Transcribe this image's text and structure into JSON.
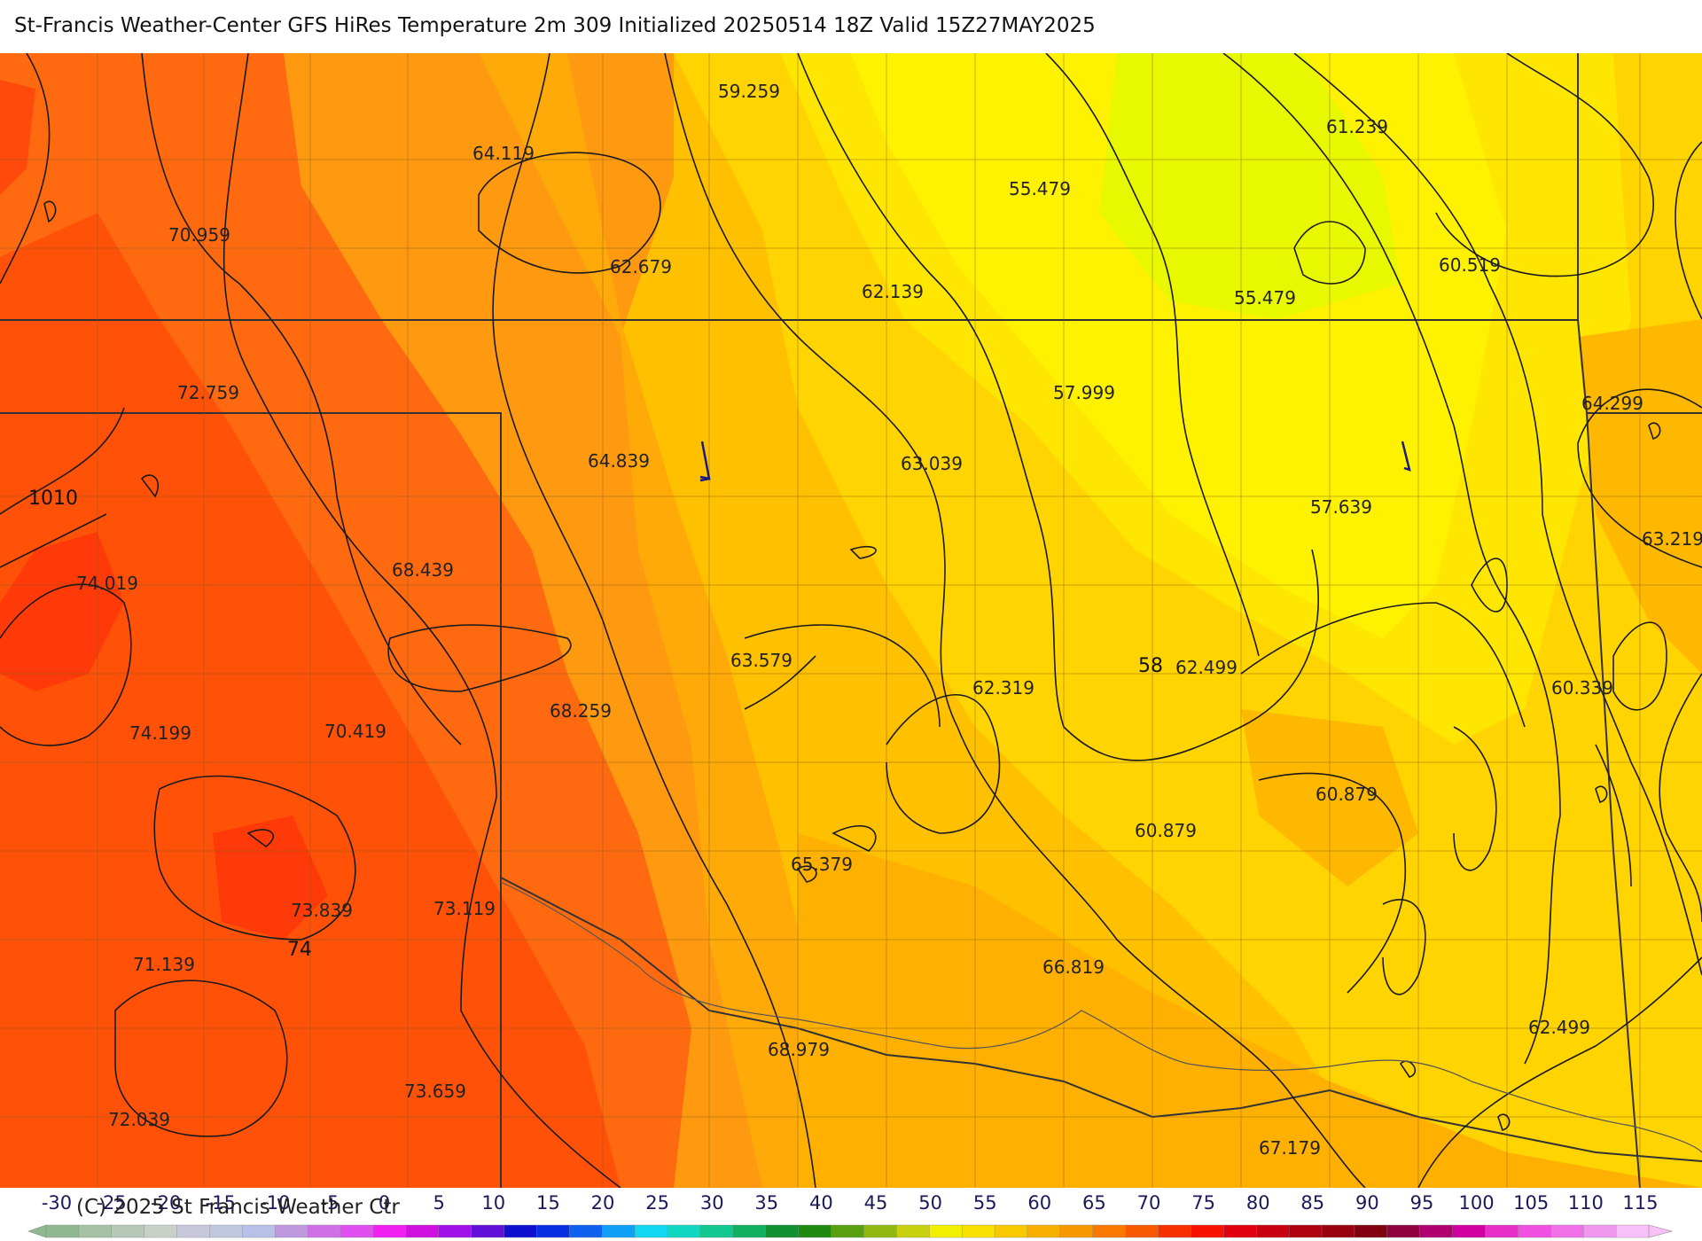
{
  "title": "St-Francis Weather-Center GFS HiRes Temperature 2m  309 Initialized 20250514 18Z Valid 15Z27MAY2025",
  "copyright": "(C) 2025 St Francis Weather Ctr",
  "temperature_labels": [
    {
      "text": "59.259"
    },
    {
      "text": "64.119"
    },
    {
      "text": "55.479"
    },
    {
      "text": "61.239"
    },
    {
      "text": "70.959"
    },
    {
      "text": "62.679"
    },
    {
      "text": "62.139"
    },
    {
      "text": "55.479"
    },
    {
      "text": "60.519"
    },
    {
      "text": "72.759"
    },
    {
      "text": "57.999"
    },
    {
      "text": "64.299"
    },
    {
      "text": "64.839"
    },
    {
      "text": "63.039"
    },
    {
      "text": "57.639"
    },
    {
      "text": "63.219"
    },
    {
      "text": "74.019"
    },
    {
      "text": "68.439"
    },
    {
      "text": "63.579"
    },
    {
      "text": "62.319"
    },
    {
      "text": "62.499"
    },
    {
      "text": "60.339"
    },
    {
      "text": "68.259"
    },
    {
      "text": "74.199"
    },
    {
      "text": "70.419"
    },
    {
      "text": "60.879"
    },
    {
      "text": "60.879"
    },
    {
      "text": "65.379"
    },
    {
      "text": "73.839"
    },
    {
      "text": "73.119"
    },
    {
      "text": "71.139"
    },
    {
      "text": "66.819"
    },
    {
      "text": "62.499"
    },
    {
      "text": "68.979"
    },
    {
      "text": "73.659"
    },
    {
      "text": "72.039"
    },
    {
      "text": "67.179"
    }
  ],
  "isobar_labels": [
    {
      "text": "1010"
    },
    {
      "text": "58"
    },
    {
      "text": "74"
    }
  ],
  "legend": {
    "ticks": [
      "-30",
      "-25",
      "-20",
      "-15",
      "-10",
      "-5",
      "0",
      "5",
      "10",
      "15",
      "20",
      "25",
      "30",
      "35",
      "40",
      "45",
      "50",
      "55",
      "60",
      "65",
      "70",
      "75",
      "80",
      "85",
      "90",
      "95",
      "100",
      "105",
      "110",
      "115"
    ],
    "colors": [
      "#8fb88f",
      "#a5c2a5",
      "#b8c8b8",
      "#c8d0c8",
      "#c8c8dc",
      "#c0c8e0",
      "#b8c0e8",
      "#c098e0",
      "#d070e8",
      "#e050f0",
      "#f020f0",
      "#d010e0",
      "#a010e8",
      "#6010d8",
      "#1010d0",
      "#0830e0",
      "#1060f0",
      "#10a0f8",
      "#10d8f0",
      "#10d8c0",
      "#10c890",
      "#10b060",
      "#109030",
      "#208a10",
      "#58a010",
      "#90b810",
      "#c8d010",
      "#f0f000",
      "#f8e000",
      "#f8c800",
      "#f8b000",
      "#f89800",
      "#f87800",
      "#f85800",
      "#f83000",
      "#f81000",
      "#e00010",
      "#c80010",
      "#b00010",
      "#980010",
      "#800010",
      "#900040",
      "#b00070",
      "#d000a0",
      "#e830c8",
      "#f050e0",
      "#f070e8",
      "#f098f0",
      "#f8c0f8"
    ]
  },
  "colors": {
    "hot": "#ff5a0a",
    "warm": "#ff8c1a",
    "mild": "#ffb000",
    "cool": "#ffd800",
    "coolest": "#e8f800"
  }
}
